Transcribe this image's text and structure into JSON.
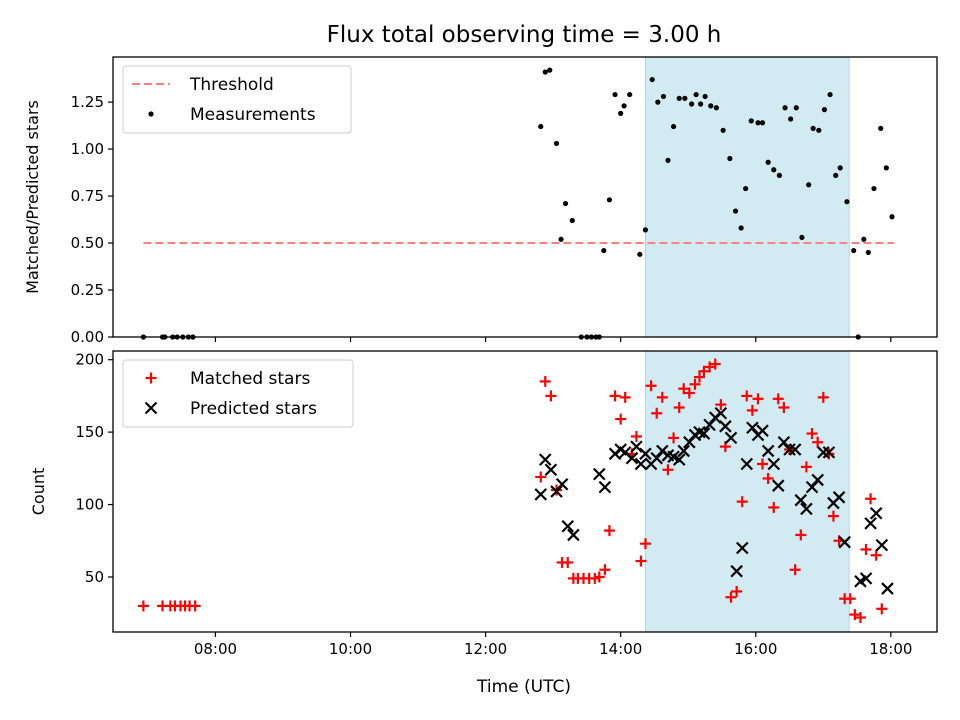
{
  "title": "Flux total observing time = 3.00 h",
  "xlabel": "Time (UTC)",
  "colors": {
    "threshold": "#ff7f7f",
    "measurement": "#000000",
    "matched": "#ff0000",
    "predicted": "#000000",
    "shade": "#add8e6"
  },
  "chart_data": [
    {
      "type": "scatter",
      "ylabel": "Matched/Predicted stars",
      "xlim": [
        "06:29",
        "18:41"
      ],
      "ylim": [
        0,
        1.49
      ],
      "x_ticks": [
        "08:00",
        "10:00",
        "12:00",
        "14:00",
        "16:00",
        "18:00"
      ],
      "y_ticks": [
        "0.00",
        "0.25",
        "0.50",
        "0.75",
        "1.00",
        "1.25"
      ],
      "shaded_region": [
        "14:22",
        "17:23"
      ],
      "legend": {
        "position": "upper-left",
        "entries": [
          "Threshold",
          "Measurements"
        ]
      },
      "threshold": {
        "name": "Threshold",
        "x": [
          "06:56",
          "18:03"
        ],
        "y": 0.5,
        "style": "dashed"
      },
      "series": [
        {
          "name": "Measurements",
          "points": [
            [
              "06:56",
              0.0
            ],
            [
              "07:13",
              0.0
            ],
            [
              "07:15",
              0.0
            ],
            [
              "07:22",
              0.0
            ],
            [
              "07:26",
              0.0
            ],
            [
              "07:31",
              0.0
            ],
            [
              "07:36",
              0.0
            ],
            [
              "07:40",
              0.0
            ],
            [
              "12:49",
              1.12
            ],
            [
              "12:53",
              1.41
            ],
            [
              "12:57",
              1.42
            ],
            [
              "13:03",
              1.03
            ],
            [
              "13:07",
              0.52
            ],
            [
              "13:11",
              0.71
            ],
            [
              "13:17",
              0.62
            ],
            [
              "13:25",
              0.0
            ],
            [
              "13:30",
              0.0
            ],
            [
              "13:34",
              0.0
            ],
            [
              "13:38",
              0.0
            ],
            [
              "13:41",
              0.0
            ],
            [
              "13:45",
              0.46
            ],
            [
              "13:50",
              0.73
            ],
            [
              "13:55",
              1.29
            ],
            [
              "14:00",
              1.19
            ],
            [
              "14:03",
              1.23
            ],
            [
              "14:08",
              1.29
            ],
            [
              "14:17",
              0.44
            ],
            [
              "14:22",
              0.57
            ],
            [
              "14:28",
              1.37
            ],
            [
              "14:33",
              1.25
            ],
            [
              "14:38",
              1.28
            ],
            [
              "14:42",
              0.94
            ],
            [
              "14:47",
              1.12
            ],
            [
              "14:52",
              1.27
            ],
            [
              "14:57",
              1.27
            ],
            [
              "15:03",
              1.24
            ],
            [
              "15:07",
              1.29
            ],
            [
              "15:11",
              1.24
            ],
            [
              "15:15",
              1.28
            ],
            [
              "15:20",
              1.23
            ],
            [
              "15:25",
              1.22
            ],
            [
              "15:31",
              1.1
            ],
            [
              "15:37",
              0.95
            ],
            [
              "15:42",
              0.67
            ],
            [
              "15:47",
              0.58
            ],
            [
              "15:51",
              0.79
            ],
            [
              "15:56",
              1.15
            ],
            [
              "16:02",
              1.14
            ],
            [
              "16:06",
              1.14
            ],
            [
              "16:11",
              0.93
            ],
            [
              "16:16",
              0.89
            ],
            [
              "16:21",
              0.86
            ],
            [
              "16:26",
              1.22
            ],
            [
              "16:31",
              1.16
            ],
            [
              "16:36",
              1.22
            ],
            [
              "16:41",
              0.53
            ],
            [
              "16:47",
              0.81
            ],
            [
              "16:51",
              1.11
            ],
            [
              "16:56",
              1.1
            ],
            [
              "17:01",
              1.21
            ],
            [
              "17:06",
              1.29
            ],
            [
              "17:11",
              0.86
            ],
            [
              "17:15",
              0.9
            ],
            [
              "17:21",
              0.72
            ],
            [
              "17:27",
              0.46
            ],
            [
              "17:31",
              0.0
            ],
            [
              "17:36",
              0.52
            ],
            [
              "17:40",
              0.45
            ],
            [
              "17:45",
              0.79
            ],
            [
              "17:51",
              1.11
            ],
            [
              "17:56",
              0.9
            ],
            [
              "18:01",
              0.64
            ]
          ]
        }
      ]
    },
    {
      "type": "scatter",
      "ylabel": "Count",
      "xlim": [
        "06:29",
        "18:41"
      ],
      "ylim": [
        12,
        206
      ],
      "x_ticks": [
        "08:00",
        "10:00",
        "12:00",
        "14:00",
        "16:00",
        "18:00"
      ],
      "y_ticks": [
        "50",
        "100",
        "150",
        "200"
      ],
      "shaded_region": [
        "14:22",
        "17:23"
      ],
      "legend": {
        "position": "upper-left",
        "entries": [
          "Matched stars",
          "Predicted stars"
        ]
      },
      "series": [
        {
          "name": "Matched stars",
          "marker": "+",
          "points": [
            [
              "06:56",
              30
            ],
            [
              "07:13",
              30
            ],
            [
              "07:20",
              30
            ],
            [
              "07:24",
              30
            ],
            [
              "07:29",
              30
            ],
            [
              "07:33",
              30
            ],
            [
              "07:37",
              30
            ],
            [
              "07:42",
              30
            ],
            [
              "12:49",
              119
            ],
            [
              "12:53",
              185
            ],
            [
              "12:58",
              175
            ],
            [
              "13:03",
              110
            ],
            [
              "13:08",
              60
            ],
            [
              "13:13",
              60
            ],
            [
              "13:18",
              49
            ],
            [
              "13:22",
              49
            ],
            [
              "13:27",
              49
            ],
            [
              "13:32",
              49
            ],
            [
              "13:37",
              49
            ],
            [
              "13:41",
              50
            ],
            [
              "13:46",
              55
            ],
            [
              "13:50",
              82
            ],
            [
              "13:55",
              175
            ],
            [
              "14:00",
              159
            ],
            [
              "14:04",
              174
            ],
            [
              "14:10",
              135
            ],
            [
              "14:14",
              147
            ],
            [
              "14:18",
              61
            ],
            [
              "14:22",
              73
            ],
            [
              "14:27",
              182
            ],
            [
              "14:32",
              163
            ],
            [
              "14:37",
              174
            ],
            [
              "14:42",
              124
            ],
            [
              "14:47",
              146
            ],
            [
              "14:52",
              167
            ],
            [
              "14:56",
              180
            ],
            [
              "15:01",
              177
            ],
            [
              "15:06",
              183
            ],
            [
              "15:10",
              188
            ],
            [
              "15:14",
              192
            ],
            [
              "15:19",
              195
            ],
            [
              "15:24",
              197
            ],
            [
              "15:29",
              169
            ],
            [
              "15:33",
              140
            ],
            [
              "15:38",
              36
            ],
            [
              "15:43",
              40
            ],
            [
              "15:48",
              102
            ],
            [
              "15:52",
              175
            ],
            [
              "15:57",
              165
            ],
            [
              "16:02",
              173
            ],
            [
              "16:06",
              128
            ],
            [
              "16:11",
              118
            ],
            [
              "16:16",
              98
            ],
            [
              "16:20",
              173
            ],
            [
              "16:25",
              167
            ],
            [
              "16:30",
              138
            ],
            [
              "16:35",
              55
            ],
            [
              "16:40",
              79
            ],
            [
              "16:45",
              126
            ],
            [
              "16:50",
              149
            ],
            [
              "16:55",
              143
            ],
            [
              "17:00",
              174
            ],
            [
              "17:05",
              135
            ],
            [
              "17:09",
              92
            ],
            [
              "17:14",
              75
            ],
            [
              "17:19",
              35
            ],
            [
              "17:24",
              35
            ],
            [
              "17:28",
              24
            ],
            [
              "17:33",
              22
            ],
            [
              "17:38",
              69
            ],
            [
              "17:42",
              104
            ],
            [
              "17:47",
              65
            ],
            [
              "17:52",
              28
            ]
          ]
        },
        {
          "name": "Predicted stars",
          "marker": "x",
          "points": [
            [
              "12:49",
              107
            ],
            [
              "12:53",
              131
            ],
            [
              "12:58",
              124
            ],
            [
              "13:03",
              109
            ],
            [
              "13:08",
              114
            ],
            [
              "13:13",
              85
            ],
            [
              "13:18",
              79
            ],
            [
              "13:41",
              121
            ],
            [
              "13:46",
              112
            ],
            [
              "13:55",
              135
            ],
            [
              "14:00",
              138
            ],
            [
              "14:04",
              136
            ],
            [
              "14:10",
              132
            ],
            [
              "14:14",
              140
            ],
            [
              "14:18",
              128
            ],
            [
              "14:22",
              135
            ],
            [
              "14:27",
              128
            ],
            [
              "14:32",
              132
            ],
            [
              "14:37",
              137
            ],
            [
              "14:42",
              134
            ],
            [
              "14:47",
              133
            ],
            [
              "14:52",
              131
            ],
            [
              "14:56",
              137
            ],
            [
              "15:01",
              143
            ],
            [
              "15:06",
              148
            ],
            [
              "15:10",
              150
            ],
            [
              "15:14",
              149
            ],
            [
              "15:19",
              155
            ],
            [
              "15:24",
              160
            ],
            [
              "15:29",
              163
            ],
            [
              "15:33",
              154
            ],
            [
              "15:38",
              146
            ],
            [
              "15:43",
              54
            ],
            [
              "15:48",
              70
            ],
            [
              "15:52",
              128
            ],
            [
              "15:57",
              153
            ],
            [
              "16:02",
              148
            ],
            [
              "16:06",
              151
            ],
            [
              "16:11",
              137
            ],
            [
              "16:16",
              128
            ],
            [
              "16:20",
              113
            ],
            [
              "16:25",
              143
            ],
            [
              "16:30",
              138
            ],
            [
              "16:35",
              138
            ],
            [
              "16:40",
              103
            ],
            [
              "16:45",
              97
            ],
            [
              "16:50",
              112
            ],
            [
              "16:55",
              117
            ],
            [
              "17:00",
              136
            ],
            [
              "17:05",
              136
            ],
            [
              "17:09",
              101
            ],
            [
              "17:14",
              105
            ],
            [
              "17:19",
              74
            ],
            [
              "17:33",
              47
            ],
            [
              "17:38",
              49
            ],
            [
              "17:42",
              87
            ],
            [
              "17:47",
              94
            ],
            [
              "17:52",
              72
            ],
            [
              "17:57",
              42
            ]
          ]
        }
      ]
    }
  ]
}
